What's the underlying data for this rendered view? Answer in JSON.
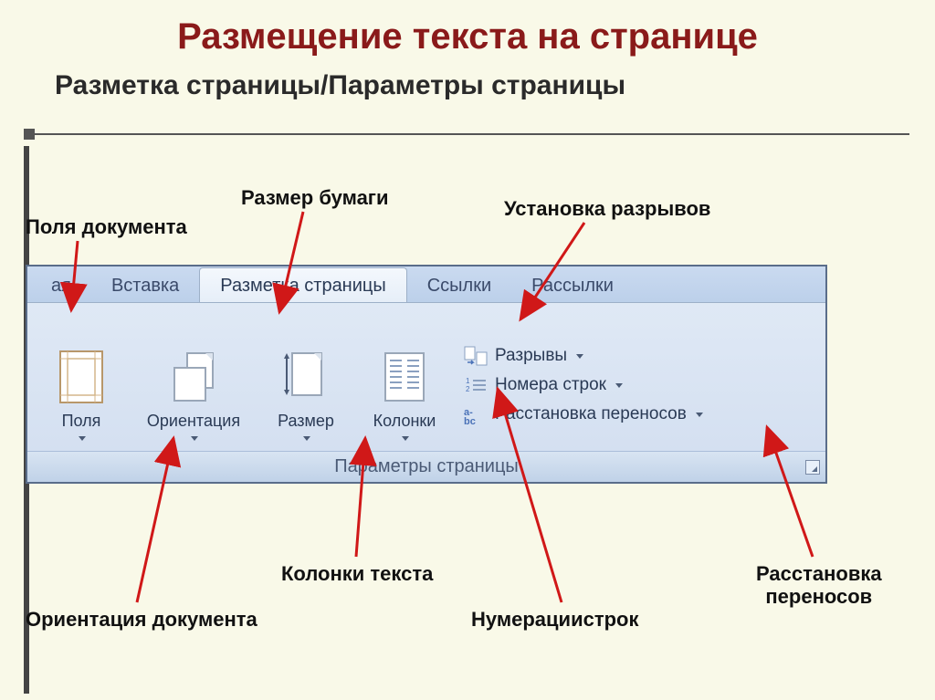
{
  "title": "Размещение текста на странице",
  "subtitle": "Разметка страницы/Параметры страницы",
  "callouts": {
    "margins": "Поля документа",
    "papersize": "Размер бумаги",
    "breaks": "Установка разрывов",
    "orientation": "Ориентация документа",
    "columns": "Колонки текста",
    "linenum": "Нумерациистрок",
    "hyphen": "Расстановка переносов"
  },
  "ribbon": {
    "tabs": {
      "home": "ая",
      "insert": "Вставка",
      "layout": "Разметка страницы",
      "refs": "Ссылки",
      "mail": "Рассылки"
    },
    "buttons": {
      "margins": "Поля",
      "orientation": "Ориентация",
      "size": "Размер",
      "columns": "Колонки"
    },
    "side": {
      "breaks": "Разрывы",
      "linenum": "Номера строк",
      "hyphen": "Расстановка переносов"
    },
    "group": "Параметры страницы"
  },
  "colors": {
    "title": "#8a1a1a",
    "arrow": "#d01818",
    "bg": "#f9f9e8"
  }
}
